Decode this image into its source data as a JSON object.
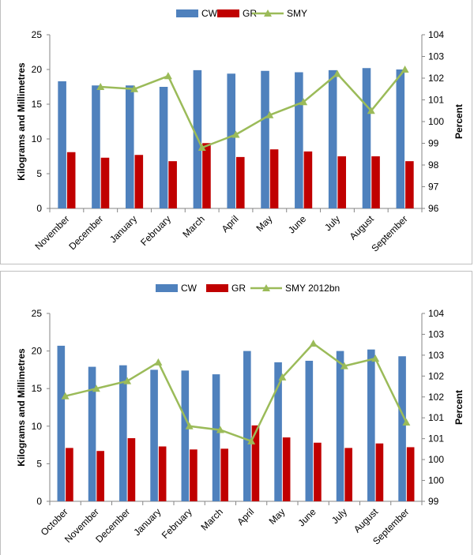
{
  "chart_data": [
    {
      "type": "bar",
      "categories": [
        "November",
        "December",
        "January",
        "February",
        "March",
        "April",
        "May",
        "June",
        "July",
        "August",
        "September"
      ],
      "series": [
        {
          "name": "CW",
          "type": "bar",
          "axis": "left",
          "color": "#4f81bd",
          "values": [
            18.3,
            17.7,
            17.7,
            17.5,
            19.9,
            19.4,
            19.8,
            19.6,
            19.9,
            20.2,
            20.0
          ]
        },
        {
          "name": "GR",
          "type": "bar",
          "axis": "left",
          "color": "#c00000",
          "values": [
            8.1,
            7.3,
            7.7,
            6.8,
            9.4,
            7.4,
            8.5,
            8.2,
            7.5,
            7.5,
            6.8
          ]
        },
        {
          "name": "SMY",
          "type": "line",
          "axis": "right",
          "color": "#9bbb59",
          "marker": "triangle",
          "values": [
            null,
            101.6,
            101.5,
            102.1,
            98.8,
            99.4,
            100.3,
            100.9,
            102.2,
            100.5,
            102.4
          ]
        }
      ],
      "ylabel": "Kilograms and Millimetres",
      "y2label": "Percent",
      "ylim": [
        0,
        25
      ],
      "y2lim": [
        96,
        104
      ],
      "yticks": [
        "0",
        "5",
        "10",
        "15",
        "20",
        "25"
      ],
      "y2ticks": [
        "96",
        "97",
        "98",
        "99",
        "100",
        "101",
        "102",
        "103",
        "104"
      ],
      "legend": "top",
      "grid": false
    },
    {
      "type": "bar",
      "categories": [
        "October",
        "November",
        "December",
        "January",
        "February",
        "March",
        "April",
        "May",
        "June",
        "July",
        "August",
        "September"
      ],
      "series": [
        {
          "name": "CW",
          "type": "bar",
          "axis": "left",
          "color": "#4f81bd",
          "values": [
            20.7,
            17.9,
            18.1,
            17.5,
            17.4,
            16.9,
            20.0,
            18.5,
            18.7,
            20.0,
            20.2,
            19.3
          ]
        },
        {
          "name": "GR",
          "type": "bar",
          "axis": "left",
          "color": "#c00000",
          "values": [
            7.1,
            6.7,
            8.4,
            7.3,
            6.9,
            7.0,
            10.1,
            8.5,
            7.8,
            7.1,
            7.7,
            7.2
          ]
        },
        {
          "name": "SMY 2012bn",
          "type": "line",
          "axis": "right",
          "color": "#9bbb59",
          "marker": "triangle",
          "values": [
            101.8,
            102.0,
            102.2,
            102.7,
            101.0,
            100.9,
            100.6,
            102.3,
            103.2,
            102.6,
            102.8,
            101.1
          ]
        }
      ],
      "ylabel": "Kilograms and Millimetres",
      "y2label": "Percent",
      "ylim": [
        0,
        25
      ],
      "y2lim": [
        99,
        104
      ],
      "yticks": [
        "0",
        "5",
        "10",
        "15",
        "20",
        "25"
      ],
      "y2ticks": [
        "99",
        "100",
        "100",
        "101",
        "101",
        "102",
        "102",
        "103",
        "103",
        "104"
      ],
      "legend": "top",
      "grid": false
    }
  ]
}
